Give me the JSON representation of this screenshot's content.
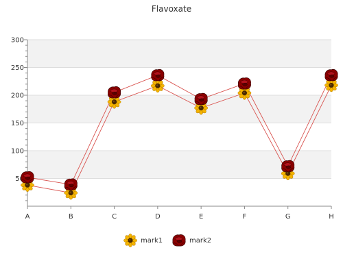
{
  "chart_data": {
    "type": "line",
    "title": "Flavoxate",
    "xlabel": "",
    "ylabel": "",
    "categories": [
      "A",
      "B",
      "C",
      "D",
      "E",
      "F",
      "G",
      "H"
    ],
    "ylim": [
      0,
      300
    ],
    "yticks": [
      50,
      100,
      150,
      200,
      250,
      300
    ],
    "grid": "horizontal bands",
    "legend_position": "bottom",
    "series": [
      {
        "name": "mark1",
        "marker": "sunflower-icon",
        "color": "#d9534f",
        "values": [
          38,
          24,
          188,
          217,
          177,
          204,
          59,
          218
        ]
      },
      {
        "name": "mark2",
        "marker": "rose-icon",
        "color": "#d9534f",
        "values": [
          52,
          39,
          205,
          236,
          193,
          221,
          72,
          236
        ]
      }
    ]
  },
  "colors": {
    "band": "#f2f2f2",
    "grid": "#dddddd",
    "line": "#d9534f",
    "sunflower_petal": "#f5b400",
    "sunflower_center": "#4a2a00",
    "rose": "#8b0000"
  }
}
